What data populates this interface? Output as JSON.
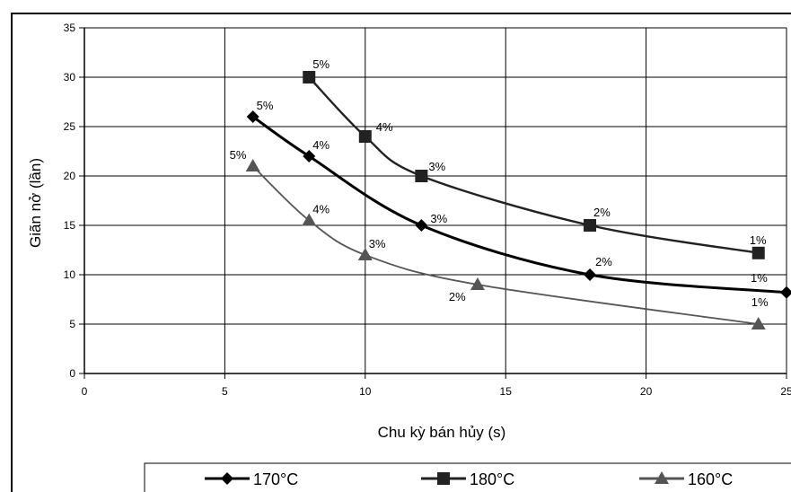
{
  "chart_data": {
    "type": "line",
    "title": "",
    "xlabel": "Chu kỳ bán hủy (s)",
    "ylabel": "Giãn nở (lần)",
    "xlim": [
      0,
      25
    ],
    "ylim": [
      0,
      35
    ],
    "xticks": [
      0,
      5,
      10,
      15,
      20,
      25
    ],
    "yticks": [
      0,
      5,
      10,
      15,
      20,
      25,
      30,
      35
    ],
    "grid": true,
    "legend": "bottom",
    "series": [
      {
        "name": "170°C",
        "marker": "diamond",
        "color": "#000000",
        "points": [
          {
            "x": 6,
            "y": 26,
            "label": "5%"
          },
          {
            "x": 8,
            "y": 22,
            "label": "4%"
          },
          {
            "x": 12,
            "y": 15,
            "label": "3%"
          },
          {
            "x": 18,
            "y": 10,
            "label": "2%"
          },
          {
            "x": 25,
            "y": 8.2,
            "label": "1%"
          }
        ]
      },
      {
        "name": "180°C",
        "marker": "square",
        "color": "#222222",
        "points": [
          {
            "x": 8,
            "y": 30,
            "label": "5%"
          },
          {
            "x": 10,
            "y": 24,
            "label": "4%"
          },
          {
            "x": 12,
            "y": 20,
            "label": "3%"
          },
          {
            "x": 18,
            "y": 15,
            "label": "2%"
          },
          {
            "x": 24,
            "y": 12.2,
            "label": "1%"
          }
        ]
      },
      {
        "name": "160°C",
        "marker": "triangle",
        "color": "#555555",
        "points": [
          {
            "x": 6,
            "y": 21,
            "label": "5%"
          },
          {
            "x": 8,
            "y": 15.5,
            "label": "4%"
          },
          {
            "x": 10,
            "y": 12,
            "label": "3%"
          },
          {
            "x": 14,
            "y": 9,
            "label": "2%"
          },
          {
            "x": 24,
            "y": 5,
            "label": "1%"
          }
        ]
      }
    ]
  }
}
